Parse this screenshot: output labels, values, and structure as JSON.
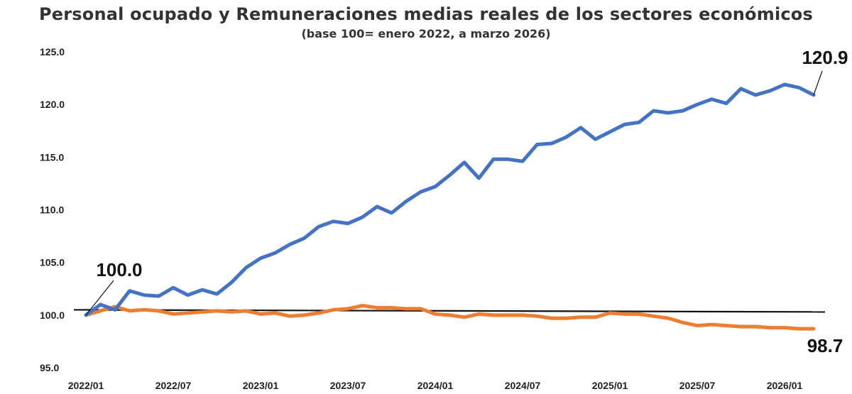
{
  "chart_data": {
    "type": "line",
    "title": "Personal ocupado y Remuneraciones medias reales de los sectores económicos",
    "subtitle": "(base 100= enero 2022, a marzo 2026)",
    "ylim": [
      95,
      125
    ],
    "yticks": [
      "95.0",
      "100.0",
      "105.0",
      "110.0",
      "115.0",
      "120.0",
      "125.0"
    ],
    "xticks": [
      "2022/01",
      "2022/07",
      "2023/01",
      "2023/07",
      "2024/01",
      "2024/07",
      "2025/01",
      "2025/07",
      "2026/01"
    ],
    "x": [
      "2022/01",
      "2022/02",
      "2022/03",
      "2022/04",
      "2022/05",
      "2022/06",
      "2022/07",
      "2022/08",
      "2022/09",
      "2022/10",
      "2022/11",
      "2022/12",
      "2023/01",
      "2023/02",
      "2023/03",
      "2023/04",
      "2023/05",
      "2023/06",
      "2023/07",
      "2023/08",
      "2023/09",
      "2023/10",
      "2023/11",
      "2023/12",
      "2024/01",
      "2024/02",
      "2024/03",
      "2024/04",
      "2024/05",
      "2024/06",
      "2024/07",
      "2024/08",
      "2024/09",
      "2024/10",
      "2024/11",
      "2024/12",
      "2025/01",
      "2025/02",
      "2025/03",
      "2025/04",
      "2025/05",
      "2025/06",
      "2025/07",
      "2025/08",
      "2025/09",
      "2025/10",
      "2025/11",
      "2025/12",
      "2026/01",
      "2026/02",
      "2026/03"
    ],
    "series": [
      {
        "color": "#4472C4",
        "values": [
          100.0,
          101.0,
          100.5,
          102.3,
          101.9,
          101.8,
          102.6,
          101.9,
          102.4,
          102.0,
          103.1,
          104.5,
          105.4,
          105.9,
          106.7,
          107.3,
          108.4,
          108.9,
          108.7,
          109.3,
          110.3,
          109.7,
          110.8,
          111.7,
          112.2,
          113.3,
          114.5,
          113.0,
          114.8,
          114.8,
          114.6,
          116.2,
          116.3,
          116.9,
          117.8,
          116.7,
          117.4,
          118.1,
          118.3,
          119.4,
          119.2,
          119.4,
          120.0,
          120.5,
          120.1,
          121.5,
          120.9,
          121.3,
          121.9,
          121.6,
          120.9
        ]
      },
      {
        "color": "#ED7D31",
        "values": [
          100.0,
          100.4,
          100.8,
          100.4,
          100.5,
          100.4,
          100.1,
          100.2,
          100.3,
          100.4,
          100.3,
          100.4,
          100.1,
          100.2,
          99.9,
          100.0,
          100.2,
          100.5,
          100.6,
          100.9,
          100.7,
          100.7,
          100.6,
          100.6,
          100.1,
          100.0,
          99.8,
          100.1,
          100.0,
          100.0,
          100.0,
          99.9,
          99.7,
          99.7,
          99.8,
          99.8,
          100.2,
          100.1,
          100.1,
          99.9,
          99.7,
          99.3,
          99.0,
          99.1,
          99.0,
          98.9,
          98.9,
          98.8,
          98.8,
          98.7,
          98.7
        ]
      }
    ],
    "reference_line": {
      "color": "#111111",
      "from": 100.5,
      "to": 100.3
    },
    "annotations": [
      {
        "text": "100.0",
        "series": 1,
        "index": 0
      },
      {
        "text": "120.9",
        "series": 0,
        "index": 50
      },
      {
        "text": "98.7",
        "series": 1,
        "index": 50
      }
    ],
    "grid": false,
    "legend": "none"
  }
}
